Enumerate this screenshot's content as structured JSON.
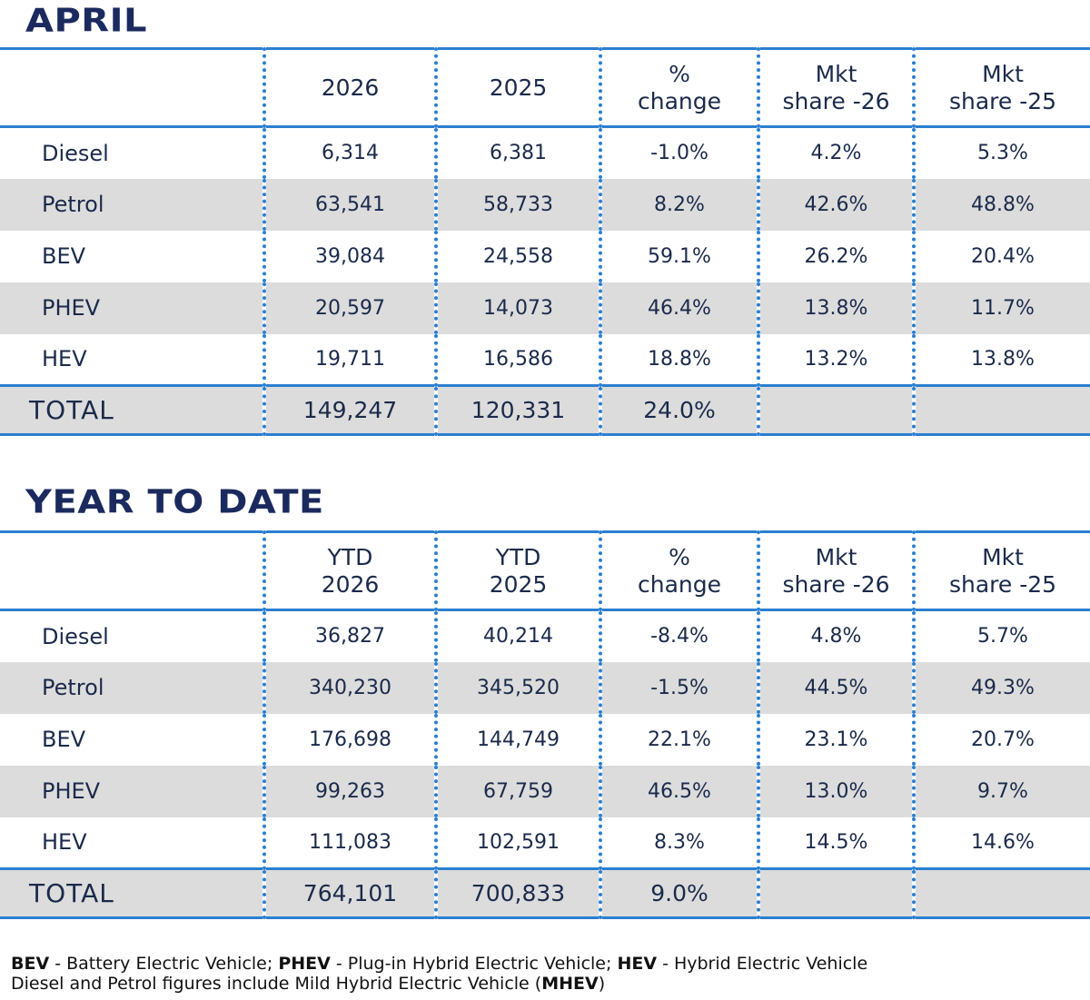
{
  "april": {
    "title": "APRIL",
    "headers": [
      "",
      "2026",
      "2025",
      "%\nchange",
      "Mkt\nshare -26",
      "Mkt\nshare -25"
    ],
    "rows": [
      {
        "label": "Diesel",
        "v": [
          "6,314",
          "6,381",
          "-1.0%",
          "4.2%",
          "5.3%"
        ]
      },
      {
        "label": "Petrol",
        "v": [
          "63,541",
          "58,733",
          "8.2%",
          "42.6%",
          "48.8%"
        ]
      },
      {
        "label": "BEV",
        "v": [
          "39,084",
          "24,558",
          "59.1%",
          "26.2%",
          "20.4%"
        ]
      },
      {
        "label": "PHEV",
        "v": [
          "20,597",
          "14,073",
          "46.4%",
          "13.8%",
          "11.7%"
        ]
      },
      {
        "label": "HEV",
        "v": [
          "19,711",
          "16,586",
          "18.8%",
          "13.2%",
          "13.8%"
        ]
      }
    ],
    "total": {
      "label": "TOTAL",
      "v": [
        "149,247",
        "120,331",
        "24.0%",
        "",
        ""
      ]
    }
  },
  "ytd": {
    "title": "YEAR TO DATE",
    "headers": [
      "",
      "YTD\n2026",
      "YTD\n2025",
      "%\nchange",
      "Mkt\nshare -26",
      "Mkt\nshare -25"
    ],
    "rows": [
      {
        "label": "Diesel",
        "v": [
          "36,827",
          "40,214",
          "-8.4%",
          "4.8%",
          "5.7%"
        ]
      },
      {
        "label": "Petrol",
        "v": [
          "340,230",
          "345,520",
          "-1.5%",
          "44.5%",
          "49.3%"
        ]
      },
      {
        "label": "BEV",
        "v": [
          "176,698",
          "144,749",
          "22.1%",
          "23.1%",
          "20.7%"
        ]
      },
      {
        "label": "PHEV",
        "v": [
          "99,263",
          "67,759",
          "46.5%",
          "13.0%",
          "9.7%"
        ]
      },
      {
        "label": "HEV",
        "v": [
          "111,083",
          "102,591",
          "8.3%",
          "14.5%",
          "14.6%"
        ]
      }
    ],
    "total": {
      "label": "TOTAL",
      "v": [
        "764,101",
        "700,833",
        "9.0%",
        "",
        ""
      ]
    }
  },
  "footnote": {
    "line1": [
      {
        "b": "BEV",
        "t": " - Battery Electric Vehicle; "
      },
      {
        "b": "PHEV",
        "t": " - Plug-in Hybrid Electric Vehicle; "
      },
      {
        "b": "HEV",
        "t": " - Hybrid Electric Vehicle"
      }
    ],
    "line2_text": "Diesel and Petrol figures include Mild Hybrid Electric Vehicle (",
    "line2_bold": "MHEV",
    "line2_end": ")"
  },
  "colors": {
    "accent": "#2b7fd0",
    "title": "#1b2a5e",
    "shade": "#dcdcdc"
  }
}
